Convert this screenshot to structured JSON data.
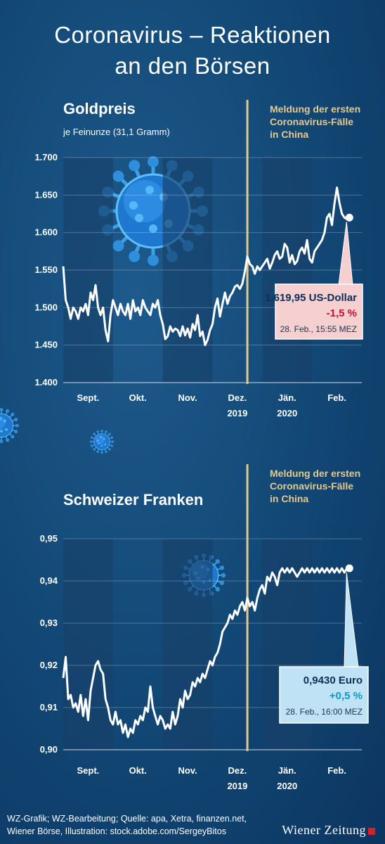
{
  "page": {
    "title_line1": "Coronavirus – Reaktionen",
    "title_line2": "an den Börsen",
    "footer_line1": "WZ-Grafik; WZ-Bearbeitung; Quelle: apa, Xetra, finanzen.net,",
    "footer_line2": "Wiener Börse, Illustration: stock.adobe.com/SergeyBitos",
    "logo": "Wiener Zeitung"
  },
  "colors": {
    "line": "#ffffff",
    "event_line": "#e6c98a",
    "band": "#17406a",
    "box_gold": "#f6cfd0",
    "box_chf": "#bfe3f5",
    "negative": "#c8102e",
    "positive": "#1296c8"
  },
  "icons": [
    "virus-icon"
  ],
  "chart_data": [
    {
      "type": "line",
      "title": "Goldpreis",
      "subtitle": "je Feinunze (31,1 Gramm)",
      "ylabel": "",
      "xlabel": "",
      "ylim": [
        1400,
        1700
      ],
      "yticks": [
        1700,
        1650,
        1600,
        1550,
        1500,
        1450,
        1400
      ],
      "ytick_labels": [
        "1.700",
        "1.650",
        "1.600",
        "1.550",
        "1.500",
        "1.450",
        "1.400"
      ],
      "xlim": [
        0,
        6
      ],
      "month_labels": [
        {
          "label": "Sept.",
          "year": ""
        },
        {
          "label": "Okt.",
          "year": ""
        },
        {
          "label": "Nov.",
          "year": ""
        },
        {
          "label": "Dez.",
          "year": "2019"
        },
        {
          "label": "Jän.",
          "year": "2020"
        },
        {
          "label": "Feb.",
          "year": ""
        }
      ],
      "event_x": 3.7,
      "event_label": [
        "Meldung der ersten",
        "Coronavirus-Fälle",
        "in China"
      ],
      "last_value_label": "1.619,95 US-Dollar",
      "change_label": "-1,5 %",
      "date_label": "28. Feb., 15:55 MEZ",
      "x": [
        0.0,
        0.05,
        0.1,
        0.15,
        0.2,
        0.25,
        0.3,
        0.35,
        0.4,
        0.45,
        0.5,
        0.55,
        0.6,
        0.65,
        0.7,
        0.75,
        0.8,
        0.85,
        0.9,
        0.95,
        1.0,
        1.05,
        1.1,
        1.15,
        1.2,
        1.25,
        1.3,
        1.35,
        1.4,
        1.45,
        1.5,
        1.55,
        1.6,
        1.65,
        1.7,
        1.75,
        1.8,
        1.85,
        1.9,
        1.95,
        2.0,
        2.05,
        2.1,
        2.15,
        2.2,
        2.25,
        2.3,
        2.35,
        2.4,
        2.45,
        2.5,
        2.55,
        2.6,
        2.65,
        2.7,
        2.75,
        2.8,
        2.85,
        2.9,
        2.95,
        3.0,
        3.05,
        3.1,
        3.15,
        3.2,
        3.25,
        3.3,
        3.35,
        3.4,
        3.45,
        3.5,
        3.55,
        3.6,
        3.65,
        3.7,
        3.75,
        3.8,
        3.85,
        3.9,
        3.95,
        4.0,
        4.05,
        4.1,
        4.15,
        4.2,
        4.25,
        4.3,
        4.35,
        4.4,
        4.45,
        4.5,
        4.55,
        4.6,
        4.65,
        4.7,
        4.75,
        4.8,
        4.85,
        4.9,
        4.95,
        5.0,
        5.05,
        5.1,
        5.15,
        5.2,
        5.25,
        5.3,
        5.35,
        5.4,
        5.45,
        5.5,
        5.55,
        5.6,
        5.65,
        5.7,
        5.75
      ],
      "values": [
        1555,
        1510,
        1500,
        1485,
        1500,
        1495,
        1485,
        1500,
        1495,
        1505,
        1490,
        1520,
        1510,
        1530,
        1500,
        1490,
        1500,
        1470,
        1455,
        1490,
        1510,
        1500,
        1490,
        1505,
        1495,
        1490,
        1505,
        1485,
        1510,
        1495,
        1500,
        1490,
        1510,
        1500,
        1495,
        1490,
        1505,
        1500,
        1510,
        1490,
        1478,
        1458,
        1462,
        1475,
        1468,
        1472,
        1470,
        1462,
        1475,
        1463,
        1472,
        1460,
        1478,
        1470,
        1490,
        1462,
        1468,
        1450,
        1457,
        1470,
        1478,
        1500,
        1512,
        1488,
        1505,
        1520,
        1505,
        1515,
        1520,
        1528,
        1530,
        1525,
        1532,
        1548,
        1568,
        1558,
        1555,
        1545,
        1555,
        1550,
        1555,
        1560,
        1565,
        1552,
        1560,
        1570,
        1575,
        1565,
        1568,
        1585,
        1580,
        1560,
        1570,
        1558,
        1562,
        1575,
        1580,
        1572,
        1590,
        1565,
        1560,
        1575,
        1580,
        1585,
        1590,
        1600,
        1620,
        1625,
        1610,
        1638,
        1660,
        1640,
        1625,
        1620,
        1618,
        1620
      ]
    },
    {
      "type": "line",
      "title": "Schweizer Franken",
      "subtitle": "",
      "ylabel": "",
      "xlabel": "",
      "ylim": [
        0.9,
        0.95
      ],
      "yticks": [
        0.95,
        0.94,
        0.93,
        0.92,
        0.91,
        0.9
      ],
      "ytick_labels": [
        "0,95",
        "0,94",
        "0,93",
        "0,92",
        "0,91",
        "0,90"
      ],
      "xlim": [
        0,
        6
      ],
      "month_labels": [
        {
          "label": "Sept.",
          "year": ""
        },
        {
          "label": "Okt.",
          "year": ""
        },
        {
          "label": "Nov.",
          "year": ""
        },
        {
          "label": "Dez.",
          "year": "2019"
        },
        {
          "label": "Jän.",
          "year": "2020"
        },
        {
          "label": "Feb.",
          "year": ""
        }
      ],
      "event_x": 3.7,
      "event_label": [
        "Meldung der ersten",
        "Coronavirus-Fälle",
        "in China"
      ],
      "last_value_label": "0,9430 Euro",
      "change_label": "+0,5 %",
      "date_label": "28. Feb., 16:00 MEZ",
      "x": [
        0.0,
        0.05,
        0.1,
        0.15,
        0.2,
        0.25,
        0.3,
        0.35,
        0.4,
        0.45,
        0.5,
        0.55,
        0.6,
        0.65,
        0.7,
        0.75,
        0.8,
        0.85,
        0.9,
        0.95,
        1.0,
        1.05,
        1.1,
        1.15,
        1.2,
        1.25,
        1.3,
        1.35,
        1.4,
        1.45,
        1.5,
        1.55,
        1.6,
        1.65,
        1.7,
        1.75,
        1.8,
        1.85,
        1.9,
        1.95,
        2.0,
        2.05,
        2.1,
        2.15,
        2.2,
        2.25,
        2.3,
        2.35,
        2.4,
        2.45,
        2.5,
        2.55,
        2.6,
        2.65,
        2.7,
        2.75,
        2.8,
        2.85,
        2.9,
        2.95,
        3.0,
        3.05,
        3.1,
        3.15,
        3.2,
        3.25,
        3.3,
        3.35,
        3.4,
        3.45,
        3.5,
        3.55,
        3.6,
        3.65,
        3.7,
        3.75,
        3.8,
        3.85,
        3.9,
        3.95,
        4.0,
        4.05,
        4.1,
        4.15,
        4.2,
        4.25,
        4.3,
        4.35,
        4.4,
        4.45,
        4.5,
        4.55,
        4.6,
        4.65,
        4.7,
        4.75,
        4.8,
        4.85,
        4.9,
        4.95,
        5.0,
        5.05,
        5.1,
        5.15,
        5.2,
        5.25,
        5.3,
        5.35,
        5.4,
        5.45,
        5.5,
        5.55,
        5.6,
        5.65,
        5.7,
        5.75
      ],
      "values": [
        0.917,
        0.922,
        0.912,
        0.913,
        0.91,
        0.911,
        0.909,
        0.913,
        0.908,
        0.912,
        0.907,
        0.914,
        0.917,
        0.92,
        0.921,
        0.919,
        0.918,
        0.912,
        0.91,
        0.907,
        0.906,
        0.909,
        0.906,
        0.907,
        0.904,
        0.906,
        0.903,
        0.905,
        0.904,
        0.907,
        0.906,
        0.908,
        0.907,
        0.91,
        0.909,
        0.915,
        0.91,
        0.908,
        0.906,
        0.908,
        0.907,
        0.905,
        0.906,
        0.905,
        0.909,
        0.906,
        0.908,
        0.912,
        0.91,
        0.914,
        0.912,
        0.913,
        0.916,
        0.915,
        0.917,
        0.916,
        0.918,
        0.917,
        0.919,
        0.921,
        0.92,
        0.922,
        0.923,
        0.925,
        0.928,
        0.929,
        0.93,
        0.932,
        0.931,
        0.933,
        0.932,
        0.934,
        0.935,
        0.933,
        0.936,
        0.934,
        0.935,
        0.933,
        0.936,
        0.938,
        0.939,
        0.937,
        0.941,
        0.94,
        0.942,
        0.941,
        0.939,
        0.942,
        0.943,
        0.942,
        0.943,
        0.942,
        0.943,
        0.942,
        0.941,
        0.942,
        0.943,
        0.942,
        0.943,
        0.942,
        0.943,
        0.942,
        0.943,
        0.942,
        0.943,
        0.942,
        0.943,
        0.942,
        0.943,
        0.942,
        0.943,
        0.942,
        0.943,
        0.942,
        0.943,
        0.943
      ]
    }
  ]
}
